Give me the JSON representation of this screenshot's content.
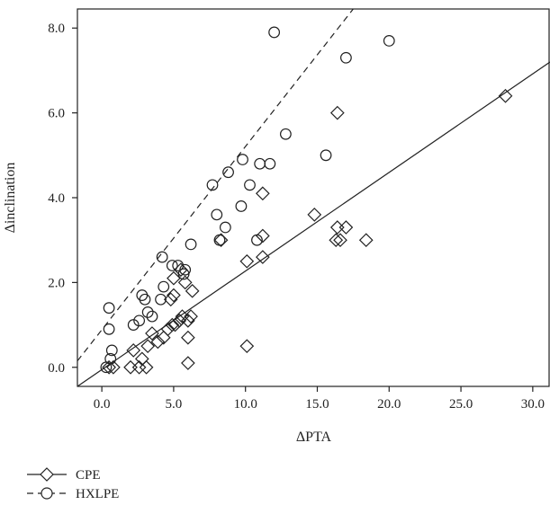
{
  "chart_data": {
    "type": "scatter",
    "title": "",
    "xlabel": "ΔPTA",
    "ylabel": "Δinclination",
    "xlim": [
      -1.7,
      31.2
    ],
    "ylim": [
      -0.45,
      8.45
    ],
    "x_ticks": [
      "0.0",
      "5.0",
      "10.0",
      "15.0",
      "20.0",
      "25.0",
      "30.0"
    ],
    "x_tick_values": [
      0,
      5,
      10,
      15,
      20,
      25,
      30
    ],
    "y_ticks": [
      "0.0",
      "2.0",
      "4.0",
      "6.0",
      "8.0"
    ],
    "y_tick_values": [
      0,
      2,
      4,
      6,
      8
    ],
    "grid": false,
    "legend_position": "bottom-left",
    "series": [
      {
        "name": "CPE",
        "marker": "diamond",
        "line_style": "solid",
        "fit_line": {
          "x0": -1.7,
          "y0": -0.45,
          "x1": 31.2,
          "y1": 7.2
        },
        "points": [
          [
            0.5,
            0.0
          ],
          [
            0.8,
            0.0
          ],
          [
            2.0,
            0.0
          ],
          [
            2.6,
            0.0
          ],
          [
            3.1,
            0.0
          ],
          [
            2.2,
            0.4
          ],
          [
            2.8,
            0.2
          ],
          [
            3.2,
            0.5
          ],
          [
            3.5,
            0.8
          ],
          [
            3.9,
            0.6
          ],
          [
            4.3,
            0.7
          ],
          [
            4.6,
            0.9
          ],
          [
            4.9,
            1.0
          ],
          [
            5.1,
            1.0
          ],
          [
            5.4,
            1.1
          ],
          [
            5.6,
            1.2
          ],
          [
            6.0,
            1.1
          ],
          [
            6.2,
            1.2
          ],
          [
            6.0,
            0.7
          ],
          [
            6.0,
            0.1
          ],
          [
            4.8,
            1.6
          ],
          [
            5.0,
            1.7
          ],
          [
            5.0,
            2.1
          ],
          [
            5.5,
            2.3
          ],
          [
            5.8,
            2.0
          ],
          [
            6.3,
            1.8
          ],
          [
            8.3,
            3.0
          ],
          [
            10.1,
            2.5
          ],
          [
            10.1,
            0.5
          ],
          [
            11.2,
            2.6
          ],
          [
            11.2,
            3.1
          ],
          [
            11.2,
            4.1
          ],
          [
            14.8,
            3.6
          ],
          [
            16.4,
            3.3
          ],
          [
            16.3,
            3.0
          ],
          [
            16.6,
            3.0
          ],
          [
            17.0,
            3.3
          ],
          [
            18.4,
            3.0
          ],
          [
            16.4,
            6.0
          ],
          [
            28.1,
            6.4
          ]
        ]
      },
      {
        "name": "HXLPE",
        "marker": "circle",
        "line_style": "dashed",
        "fit_line": {
          "x0": -1.7,
          "y0": 0.15,
          "x1": 17.5,
          "y1": 8.45
        },
        "points": [
          [
            0.3,
            0.0
          ],
          [
            0.6,
            0.2
          ],
          [
            0.7,
            0.4
          ],
          [
            0.5,
            0.9
          ],
          [
            0.5,
            1.4
          ],
          [
            2.2,
            1.0
          ],
          [
            2.6,
            1.1
          ],
          [
            2.8,
            1.7
          ],
          [
            3.0,
            1.6
          ],
          [
            3.5,
            1.2
          ],
          [
            3.2,
            1.3
          ],
          [
            4.1,
            1.6
          ],
          [
            4.3,
            1.9
          ],
          [
            4.2,
            2.6
          ],
          [
            4.9,
            2.4
          ],
          [
            5.3,
            2.4
          ],
          [
            5.8,
            2.3
          ],
          [
            5.7,
            2.2
          ],
          [
            6.2,
            2.9
          ],
          [
            7.7,
            4.3
          ],
          [
            8.0,
            3.6
          ],
          [
            8.2,
            3.0
          ],
          [
            8.8,
            4.6
          ],
          [
            8.6,
            3.3
          ],
          [
            9.7,
            3.8
          ],
          [
            9.8,
            4.9
          ],
          [
            10.3,
            4.3
          ],
          [
            10.8,
            3.0
          ],
          [
            11.0,
            4.8
          ],
          [
            11.7,
            4.8
          ],
          [
            12.8,
            5.5
          ],
          [
            15.6,
            5.0
          ],
          [
            12.0,
            7.9
          ],
          [
            17.0,
            7.3
          ],
          [
            20.0,
            7.7
          ]
        ]
      }
    ]
  }
}
